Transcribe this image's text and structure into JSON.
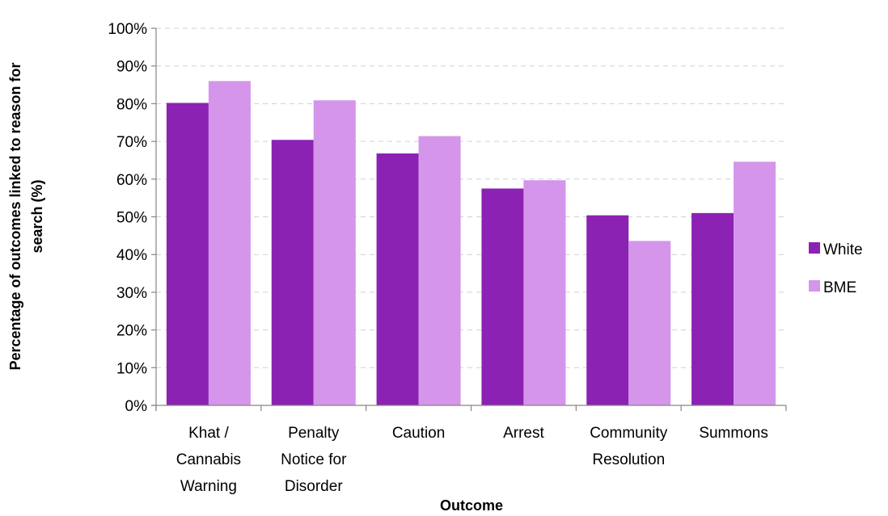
{
  "chart_data": {
    "type": "bar",
    "title": "",
    "xlabel": "Outcome",
    "ylabel": "Percentage of outcomes linked to reason for search (%)",
    "ylabel_lines": [
      "Percentage of outcomes linked to reason for",
      "search (%)"
    ],
    "categories": [
      "Khat / Cannabis Warning",
      "Penalty Notice for Disorder",
      "Caution",
      "Arrest",
      "Community Resolution",
      "Summons"
    ],
    "category_lines": [
      [
        "Khat /",
        "Cannabis",
        "Warning"
      ],
      [
        "Penalty",
        "Notice for",
        "Disorder"
      ],
      [
        "Caution"
      ],
      [
        "Arrest"
      ],
      [
        "Community",
        "Resolution"
      ],
      [
        "Summons"
      ]
    ],
    "series": [
      {
        "name": "White",
        "color": "#8b22b3",
        "values": [
          80.2,
          70.4,
          66.8,
          57.5,
          50.4,
          51.0
        ]
      },
      {
        "name": "BME",
        "color": "#d495eb",
        "values": [
          86.0,
          80.9,
          71.4,
          59.7,
          43.6,
          64.6
        ]
      }
    ],
    "ylim": [
      0,
      100
    ],
    "yticks": [
      0,
      10,
      20,
      30,
      40,
      50,
      60,
      70,
      80,
      90,
      100
    ],
    "ytick_labels": [
      "0%",
      "10%",
      "20%",
      "30%",
      "40%",
      "50%",
      "60%",
      "70%",
      "80%",
      "90%",
      "100%"
    ],
    "grid": true,
    "legend_position": "right"
  }
}
